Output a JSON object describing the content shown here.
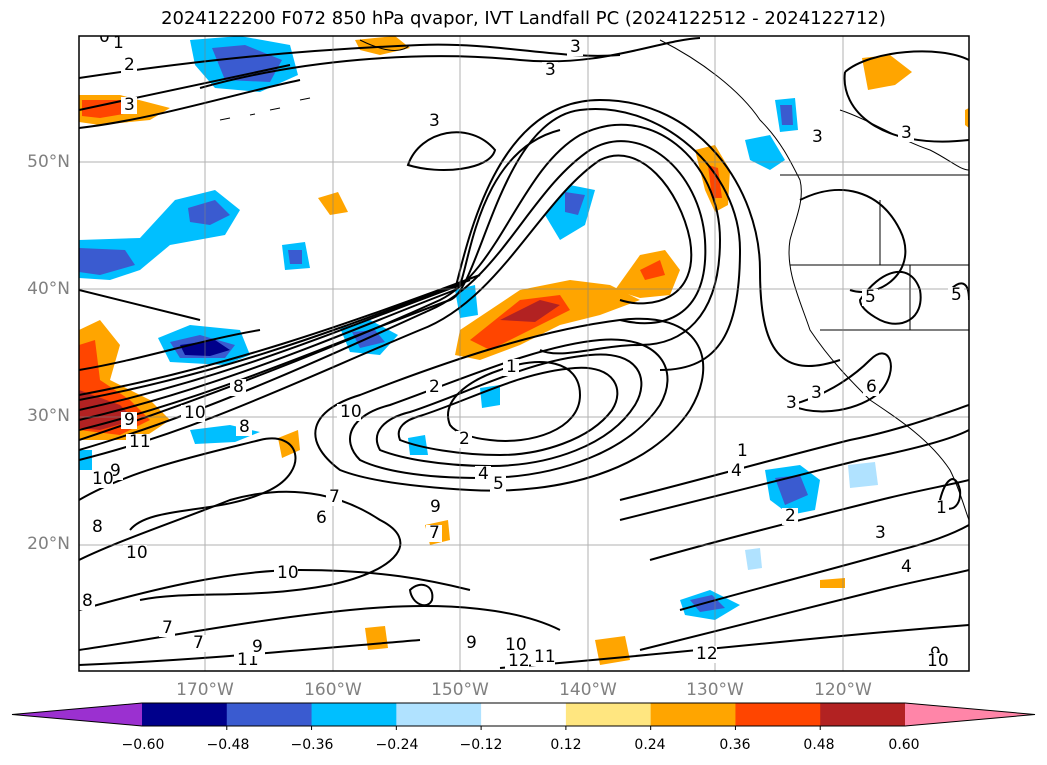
{
  "title": "2024122200 F072 850 hPa qvapor, IVT Landfall PC (2024122512 - 2024122712)",
  "lat_labels": [
    "50°N",
    "40°N",
    "30°N",
    "20°N"
  ],
  "lon_labels": [
    "170°W",
    "160°W",
    "150°W",
    "140°W",
    "130°W",
    "120°W"
  ],
  "colorbar": {
    "tick_labels": [
      "−0.60",
      "−0.48",
      "−0.36",
      "−0.24",
      "−0.12",
      "0.12",
      "0.24",
      "0.36",
      "0.48",
      "0.60"
    ],
    "colors": [
      "#9b30d0",
      "#00008b",
      "#3a5bd0",
      "#00bfff",
      "#b0e2ff",
      "#ffffff",
      "#ffe680",
      "#ffa500",
      "#ff4500",
      "#b22222",
      "#ff85a8"
    ]
  },
  "contour_labels": [
    "0",
    "1",
    "2",
    "3",
    "3",
    "3",
    "3",
    "3",
    "3",
    "3",
    "8",
    "10",
    "9",
    "11",
    "8",
    "9",
    "10",
    "10",
    "8",
    "7",
    "6",
    "7",
    "9",
    "7",
    "10",
    "8",
    "7",
    "10",
    "11",
    "9",
    "9",
    "10",
    "12",
    "11",
    "12",
    "4",
    "4",
    "5",
    "2",
    "1",
    "2",
    "3",
    "3",
    "6",
    "5",
    "5",
    "4",
    "9",
    "10",
    "1",
    "2",
    "7",
    "4",
    "3",
    "1"
  ]
}
